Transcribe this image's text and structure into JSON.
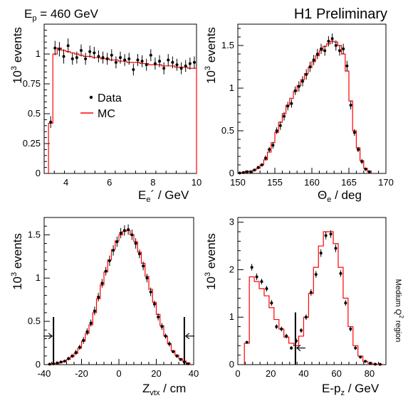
{
  "header": {
    "energy_label_main": "E",
    "energy_label_sub": "p",
    "energy_label_rest": " = 460 GeV",
    "preliminary": "H1 Preliminary"
  },
  "side_label": {
    "main": "Medium Q",
    "sup": "2",
    "rest": " region"
  },
  "legend": {
    "data_label": "Data",
    "mc_label": "MC"
  },
  "colors": {
    "mc": "#ff0000",
    "data": "#000000",
    "axis": "#000000"
  },
  "chart_data": [
    {
      "id": "ee",
      "type": "line",
      "xlim": [
        3,
        10
      ],
      "ylim": [
        0,
        1.25
      ],
      "xticks": [
        4,
        6,
        8,
        10
      ],
      "yticks": [
        0,
        0.25,
        0.5,
        0.75,
        1
      ],
      "ytick_labels": [
        "0",
        "0.25",
        "0.5",
        "0.75",
        "1"
      ],
      "ylabel": "10^3 events",
      "xlabel": "Ee' / GeV",
      "legend": "middle-left",
      "series": [
        {
          "name": "MC",
          "kind": "step",
          "edges": [
            3.2,
            3.4,
            3.6,
            3.8,
            4.0,
            4.2,
            4.4,
            4.6,
            4.8,
            5.0,
            5.2,
            5.4,
            5.6,
            5.8,
            6.0,
            6.2,
            6.4,
            6.6,
            6.8,
            7.0,
            7.2,
            7.4,
            7.6,
            7.8,
            8.0,
            8.2,
            8.4,
            8.6,
            8.8,
            9.0,
            9.2,
            9.4,
            9.6,
            9.8,
            10.0
          ],
          "values": [
            0.42,
            1.0,
            1.05,
            1.03,
            1.02,
            1.01,
            1.0,
            0.99,
            0.98,
            0.98,
            0.97,
            0.97,
            0.96,
            0.96,
            0.95,
            0.95,
            0.94,
            0.94,
            0.93,
            0.93,
            0.93,
            0.92,
            0.92,
            0.91,
            0.91,
            0.91,
            0.9,
            0.9,
            0.9,
            0.89,
            0.89,
            0.89,
            0.88,
            0.88
          ]
        },
        {
          "name": "Data",
          "kind": "points",
          "x": [
            3.3,
            3.5,
            3.7,
            3.9,
            4.1,
            4.3,
            4.5,
            4.7,
            4.9,
            5.1,
            5.3,
            5.5,
            5.7,
            5.9,
            6.1,
            6.3,
            6.5,
            6.7,
            6.9,
            7.1,
            7.3,
            7.5,
            7.7,
            7.9,
            8.1,
            8.3,
            8.5,
            8.7,
            8.9,
            9.1,
            9.3,
            9.5,
            9.7,
            9.9
          ],
          "y": [
            0.43,
            1.05,
            1.04,
            0.98,
            1.07,
            0.96,
            0.97,
            1.03,
            0.96,
            1.02,
            1.01,
            0.98,
            0.97,
            0.96,
            0.99,
            0.93,
            0.97,
            0.95,
            0.96,
            0.87,
            0.95,
            0.94,
            0.91,
            0.99,
            0.92,
            0.94,
            0.88,
            0.95,
            0.93,
            0.91,
            0.88,
            0.9,
            0.92,
            0.93
          ],
          "err": [
            0.05,
            0.06,
            0.06,
            0.06,
            0.06,
            0.05,
            0.05,
            0.05,
            0.05,
            0.05,
            0.05,
            0.05,
            0.05,
            0.05,
            0.05,
            0.05,
            0.05,
            0.05,
            0.05,
            0.05,
            0.05,
            0.05,
            0.05,
            0.05,
            0.05,
            0.05,
            0.05,
            0.05,
            0.05,
            0.05,
            0.05,
            0.05,
            0.05,
            0.05
          ]
        }
      ]
    },
    {
      "id": "theta",
      "type": "line",
      "xlim": [
        150,
        170
      ],
      "ylim": [
        0,
        1.75
      ],
      "xticks": [
        150,
        155,
        160,
        165,
        170
      ],
      "yticks": [
        0,
        0.5,
        1,
        1.5
      ],
      "ytick_labels": [
        "0",
        "0.5",
        "1",
        "1.5"
      ],
      "ylabel": "10^3 events",
      "xlabel": "Θe / deg",
      "series": [
        {
          "name": "MC",
          "kind": "step",
          "edges": [
            150,
            150.5,
            151,
            151.5,
            152,
            152.5,
            153,
            153.5,
            154,
            154.5,
            155,
            155.5,
            156,
            156.5,
            157,
            157.5,
            158,
            158.5,
            159,
            159.5,
            160,
            160.5,
            161,
            161.5,
            162,
            162.5,
            163,
            163.5,
            164,
            164.5,
            165,
            165.5,
            166,
            166.5,
            167,
            167.5,
            168
          ],
          "values": [
            0.005,
            0.01,
            0.015,
            0.025,
            0.04,
            0.06,
            0.1,
            0.16,
            0.25,
            0.36,
            0.48,
            0.6,
            0.7,
            0.8,
            0.88,
            0.96,
            1.03,
            1.1,
            1.17,
            1.24,
            1.31,
            1.38,
            1.44,
            1.49,
            1.52,
            1.55,
            1.54,
            1.5,
            1.4,
            1.2,
            0.85,
            0.5,
            0.3,
            0.15,
            0.06,
            0.02
          ]
        },
        {
          "name": "Data",
          "kind": "points",
          "x": [
            150.25,
            150.75,
            151.25,
            151.75,
            152.25,
            152.75,
            153.25,
            153.75,
            154.25,
            154.75,
            155.25,
            155.75,
            156.25,
            156.75,
            157.25,
            157.75,
            158.25,
            158.75,
            159.25,
            159.75,
            160.25,
            160.75,
            161.25,
            161.75,
            162.25,
            162.75,
            163.25,
            163.75,
            164.25,
            164.75,
            165.25,
            165.75,
            166.25,
            166.75,
            167.25,
            167.75
          ],
          "y": [
            0.005,
            0.01,
            0.02,
            0.02,
            0.04,
            0.07,
            0.1,
            0.18,
            0.28,
            0.33,
            0.5,
            0.56,
            0.67,
            0.79,
            0.82,
            0.97,
            1.02,
            1.08,
            1.16,
            1.25,
            1.33,
            1.4,
            1.46,
            1.44,
            1.55,
            1.58,
            1.5,
            1.44,
            1.46,
            1.26,
            0.8,
            0.48,
            0.28,
            0.14,
            0.05,
            0.02
          ],
          "err": [
            0.005,
            0.005,
            0.01,
            0.01,
            0.01,
            0.02,
            0.02,
            0.03,
            0.03,
            0.04,
            0.04,
            0.05,
            0.05,
            0.05,
            0.05,
            0.05,
            0.06,
            0.06,
            0.06,
            0.06,
            0.06,
            0.06,
            0.06,
            0.06,
            0.06,
            0.06,
            0.06,
            0.06,
            0.06,
            0.06,
            0.05,
            0.04,
            0.03,
            0.03,
            0.02,
            0.01
          ]
        }
      ]
    },
    {
      "id": "zvtx",
      "type": "line",
      "xlim": [
        -40,
        40
      ],
      "ylim": [
        0,
        1.7
      ],
      "xticks": [
        -40,
        -20,
        0,
        20,
        40
      ],
      "yticks": [
        0,
        0.5,
        1,
        1.5
      ],
      "ytick_labels": [
        "0",
        "0.5",
        "1",
        "1.5"
      ],
      "ylabel": "10^3 events",
      "xlabel": "Zvtx / cm",
      "cuts": [
        {
          "x": -35,
          "ymax": 0.55,
          "arrow": "right"
        },
        {
          "x": 35,
          "ymax": 0.55,
          "arrow": "left"
        }
      ],
      "series": [
        {
          "name": "MC",
          "kind": "step",
          "edges": [
            -38,
            -36,
            -34,
            -32,
            -30,
            -28,
            -26,
            -24,
            -22,
            -20,
            -18,
            -16,
            -14,
            -12,
            -10,
            -8,
            -6,
            -4,
            -2,
            0,
            2,
            4,
            6,
            8,
            10,
            12,
            14,
            16,
            18,
            20,
            22,
            24,
            26,
            28,
            30,
            32,
            34,
            36,
            38
          ],
          "values": [
            0.005,
            0.01,
            0.015,
            0.025,
            0.04,
            0.06,
            0.09,
            0.13,
            0.19,
            0.27,
            0.36,
            0.46,
            0.6,
            0.76,
            0.92,
            1.07,
            1.21,
            1.33,
            1.43,
            1.5,
            1.54,
            1.55,
            1.5,
            1.42,
            1.3,
            1.17,
            1.02,
            0.87,
            0.72,
            0.58,
            0.45,
            0.33,
            0.24,
            0.16,
            0.11,
            0.07,
            0.04,
            0.02
          ]
        },
        {
          "name": "Data",
          "kind": "points",
          "x": [
            -37,
            -35,
            -33,
            -31,
            -29,
            -27,
            -25,
            -23,
            -21,
            -19,
            -17,
            -15,
            -13,
            -11,
            -9,
            -7,
            -5,
            -3,
            -1,
            1,
            3,
            5,
            7,
            9,
            11,
            13,
            15,
            17,
            19,
            21,
            23,
            25,
            27,
            29,
            31,
            33,
            35,
            37
          ],
          "y": [
            0.005,
            0.01,
            0.02,
            0.03,
            0.04,
            0.07,
            0.1,
            0.14,
            0.2,
            0.28,
            0.38,
            0.48,
            0.62,
            0.78,
            0.94,
            1.08,
            1.2,
            1.32,
            1.42,
            1.52,
            1.55,
            1.56,
            1.5,
            1.4,
            1.28,
            1.14,
            1.0,
            0.84,
            0.7,
            0.55,
            0.44,
            0.33,
            0.24,
            0.15,
            0.1,
            0.06,
            0.03,
            0.01
          ],
          "err": [
            0.005,
            0.005,
            0.01,
            0.01,
            0.01,
            0.02,
            0.02,
            0.03,
            0.03,
            0.04,
            0.04,
            0.04,
            0.05,
            0.05,
            0.05,
            0.05,
            0.06,
            0.06,
            0.06,
            0.06,
            0.06,
            0.06,
            0.06,
            0.06,
            0.05,
            0.05,
            0.05,
            0.05,
            0.04,
            0.04,
            0.04,
            0.03,
            0.03,
            0.02,
            0.02,
            0.01,
            0.01,
            0.005
          ]
        }
      ]
    },
    {
      "id": "epz",
      "type": "line",
      "xlim": [
        0,
        90
      ],
      "ylim": [
        0,
        3.1
      ],
      "xticks": [
        0,
        20,
        40,
        60,
        80
      ],
      "yticks": [
        0,
        1,
        2,
        3
      ],
      "ytick_labels": [
        "0",
        "1",
        "2",
        "3"
      ],
      "ylabel": "10^3 events",
      "xlabel": "E-pz / GeV",
      "cuts": [
        {
          "x": 35,
          "ymax": 1.1,
          "arrow": "left",
          "arrow_y": 0.35
        }
      ],
      "series": [
        {
          "name": "MC",
          "kind": "step",
          "edges": [
            4,
            7,
            10,
            13,
            16,
            19,
            22,
            25,
            28,
            31,
            34,
            37,
            40,
            43,
            46,
            49,
            52,
            55,
            58,
            61,
            64,
            67,
            70,
            73,
            76,
            79,
            82,
            85,
            88
          ],
          "values": [
            0.45,
            1.85,
            1.75,
            1.6,
            1.45,
            1.2,
            0.95,
            0.75,
            0.58,
            0.45,
            0.4,
            0.6,
            1.0,
            1.5,
            2.05,
            2.5,
            2.8,
            2.8,
            2.55,
            2.05,
            1.4,
            0.8,
            0.4,
            0.18,
            0.07,
            0.03,
            0.01,
            0.005
          ]
        },
        {
          "name": "Data",
          "kind": "points",
          "x": [
            5.5,
            8.5,
            11.5,
            14.5,
            17.5,
            20.5,
            23.5,
            26.5,
            29.5,
            32.5,
            35.5,
            38.5,
            41.5,
            44.5,
            47.5,
            50.5,
            53.5,
            56.5,
            59.5,
            62.5,
            65.5,
            68.5,
            71.5,
            74.5,
            77.5,
            80.5,
            83.5,
            86.5
          ],
          "y": [
            0.47,
            2.05,
            1.85,
            1.75,
            1.6,
            1.3,
            0.8,
            0.75,
            0.6,
            0.35,
            0.5,
            0.72,
            1.0,
            1.52,
            1.9,
            2.35,
            2.72,
            2.75,
            2.45,
            1.92,
            1.3,
            0.75,
            0.35,
            0.16,
            0.07,
            0.03,
            0.01,
            0.005
          ],
          "err": [
            0.03,
            0.07,
            0.07,
            0.06,
            0.06,
            0.06,
            0.05,
            0.05,
            0.05,
            0.04,
            0.05,
            0.05,
            0.06,
            0.07,
            0.07,
            0.08,
            0.08,
            0.08,
            0.08,
            0.07,
            0.06,
            0.05,
            0.04,
            0.03,
            0.02,
            0.01,
            0.01,
            0.005
          ]
        }
      ]
    }
  ]
}
